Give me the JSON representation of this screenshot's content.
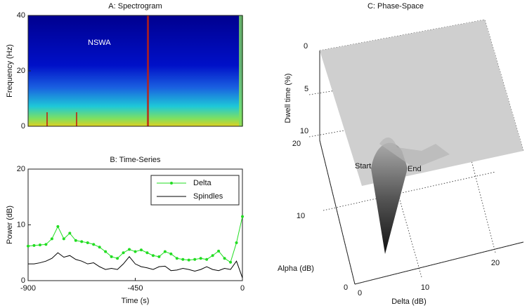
{
  "chart_data": [
    {
      "type": "spectrogram",
      "title": "A: Spectrogram",
      "ylabel": "Frequency (Hz)",
      "ylim": [
        0,
        40
      ],
      "yticks": [
        0,
        20,
        40
      ],
      "annotation": "NSWA"
    },
    {
      "type": "line",
      "title": "B: Time-Series",
      "xlabel": "Time (s)",
      "ylabel": "Power (dB)",
      "xlim": [
        -900,
        0
      ],
      "xticks": [
        -900,
        -450,
        0
      ],
      "ylim": [
        0,
        20
      ],
      "yticks": [
        0,
        10,
        20
      ],
      "legend": "upper right",
      "x": [
        -900,
        -875,
        -850,
        -825,
        -800,
        -775,
        -750,
        -725,
        -700,
        -675,
        -650,
        -625,
        -600,
        -575,
        -550,
        -525,
        -500,
        -475,
        -450,
        -425,
        -400,
        -375,
        -350,
        -325,
        -300,
        -275,
        -250,
        -225,
        -200,
        -175,
        -150,
        -125,
        -100,
        -75,
        -50,
        -25,
        0
      ],
      "series": [
        {
          "name": "Delta",
          "color": "#22dd22",
          "markers": true,
          "values": [
            6.2,
            6.3,
            6.4,
            6.5,
            7.5,
            9.7,
            7.5,
            8.5,
            7.2,
            7.0,
            6.8,
            6.5,
            6.0,
            5.2,
            4.3,
            4.0,
            5.0,
            5.6,
            5.2,
            5.5,
            5.0,
            4.5,
            4.3,
            5.2,
            4.8,
            4.0,
            3.8,
            3.7,
            3.8,
            4.0,
            3.8,
            4.5,
            5.3,
            4.0,
            3.3,
            6.8,
            11.5
          ]
        },
        {
          "name": "Spindles",
          "color": "#000000",
          "markers": false,
          "values": [
            3.0,
            3.0,
            3.2,
            3.5,
            4.0,
            5.0,
            4.2,
            4.5,
            3.8,
            3.5,
            3.0,
            3.2,
            2.5,
            2.0,
            2.2,
            2.0,
            3.0,
            4.3,
            3.0,
            2.5,
            2.3,
            2.0,
            2.5,
            2.6,
            1.8,
            1.9,
            2.2,
            2.0,
            1.7,
            2.0,
            2.5,
            2.0,
            1.8,
            2.2,
            2.0,
            3.5,
            0.5
          ]
        }
      ]
    },
    {
      "type": "surface3d",
      "title": "C: Phase-Space",
      "xlabel": "Delta (dB)",
      "ylabel": "Alpha (dB)",
      "zlabel": "Dwell time (%)",
      "xticks": [
        0,
        10,
        20
      ],
      "yticks": [
        0,
        10,
        20
      ],
      "zticks": [
        0,
        5,
        10
      ],
      "annotations": [
        "Start",
        "End"
      ]
    }
  ]
}
